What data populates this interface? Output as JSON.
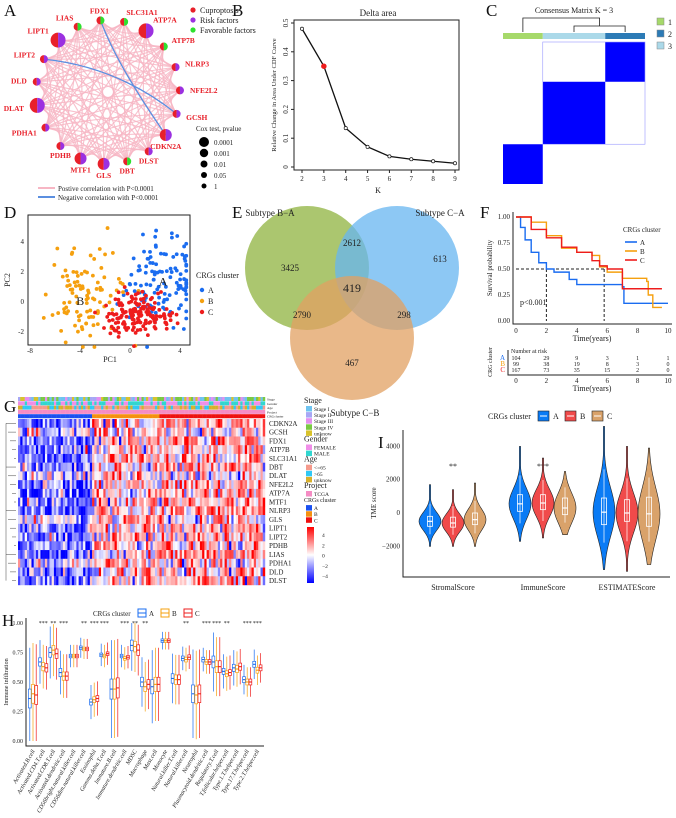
{
  "panel_labels": {
    "a": "A",
    "b": "B",
    "c": "C",
    "d": "D",
    "e": "E",
    "f": "F",
    "g": "G",
    "h": "H",
    "i": "I"
  },
  "panel_a": {
    "legend": [
      {
        "label": "Cuproptosis",
        "color": "#e8202a"
      },
      {
        "label": "Risk factors",
        "color": "#9b30e0"
      },
      {
        "label": "Favorable factors",
        "color": "#2ee02e"
      }
    ],
    "cox_title": "Cox test,  pvalue",
    "cox_levels": [
      "0.0001",
      "0.001",
      "0.01",
      "0.05",
      "1"
    ],
    "edge_legend": [
      {
        "label": "Postive correlation with P<0.0001",
        "color": "#f7b6c4"
      },
      {
        "label": "Negative correlation with P<0.0001",
        "color": "#5b8fe0"
      }
    ],
    "nodes": [
      {
        "name": "FDX1",
        "type": "favorable",
        "pvalue": "0.05"
      },
      {
        "name": "SLC31A1",
        "type": "favorable",
        "pvalue": "0.05"
      },
      {
        "name": "ATP7A",
        "type": "risk",
        "pvalue": "0.0001"
      },
      {
        "name": "ATP7B",
        "type": "favorable",
        "pvalue": "0.05"
      },
      {
        "name": "NLRP3",
        "type": "risk",
        "pvalue": "0.05"
      },
      {
        "name": "NFE2L2",
        "type": "risk",
        "pvalue": "0.05"
      },
      {
        "name": "GCSH",
        "type": "risk",
        "pvalue": "0.05"
      },
      {
        "name": "CDKN2A",
        "type": "risk",
        "pvalue": "0.001"
      },
      {
        "name": "DLST",
        "type": "risk",
        "pvalue": "0.05"
      },
      {
        "name": "DBT",
        "type": "favorable",
        "pvalue": "0.05"
      },
      {
        "name": "GLS",
        "type": "risk",
        "pvalue": "0.001"
      },
      {
        "name": "MTF1",
        "type": "risk",
        "pvalue": "0.001"
      },
      {
        "name": "PDHB",
        "type": "risk",
        "pvalue": "0.05"
      },
      {
        "name": "PDHA1",
        "type": "risk",
        "pvalue": "0.05"
      },
      {
        "name": "DLAT",
        "type": "risk",
        "pvalue": "0.0001"
      },
      {
        "name": "DLD",
        "type": "risk",
        "pvalue": "0.05"
      },
      {
        "name": "LIPT2",
        "type": "risk",
        "pvalue": "0.05"
      },
      {
        "name": "LIPT1",
        "type": "risk",
        "pvalue": "0.0001"
      },
      {
        "name": "LIAS",
        "type": "favorable",
        "pvalue": "0.05"
      }
    ],
    "negative_edges": [
      [
        "LIPT2",
        "GCSH"
      ],
      [
        "FDX1",
        "CDKN2A"
      ]
    ]
  },
  "chart_data": [
    {
      "id": "B",
      "type": "line",
      "title": "Delta area",
      "xlabel": "K",
      "ylabel": "Relative Change in Area Under CDF Curve",
      "x": [
        2,
        3,
        4,
        5,
        6,
        7,
        8,
        9
      ],
      "values": [
        0.48,
        0.35,
        0.135,
        0.07,
        0.037,
        0.027,
        0.02,
        0.013
      ],
      "highlight_k": 3,
      "ylim": [
        0,
        0.5
      ],
      "yticks": [
        "0",
        "0.1",
        "0.2",
        "0.3",
        "0.4",
        "0.5"
      ]
    },
    {
      "id": "C",
      "type": "heatmap",
      "title": "Consensus Matrix K = 3",
      "clusters": [
        {
          "label": "1",
          "color": "#a6d96a",
          "share": 0.28
        },
        {
          "label": "2",
          "color": "#2c7bb6",
          "share": 0.28
        },
        {
          "label": "3",
          "color": "#abd9e9",
          "share": 0.44
        }
      ],
      "block_color": "#0000ff"
    },
    {
      "id": "D",
      "type": "scatter",
      "xlabel": "PC1",
      "ylabel": "PC2",
      "xticks": [
        "-8",
        "-4",
        "0",
        "4"
      ],
      "yticks": [
        "4",
        "2",
        "0",
        "-2"
      ],
      "legend_title": "CRGs cluster",
      "series": [
        {
          "name": "A",
          "color": "#1a6cf0",
          "center": [
            2.5,
            1.5
          ],
          "n": 120
        },
        {
          "name": "B",
          "color": "#f5a00f",
          "center": [
            -3.5,
            0.6
          ],
          "n": 100
        },
        {
          "name": "C",
          "color": "#ee1c1c",
          "center": [
            0.4,
            -0.9
          ],
          "n": 160
        }
      ]
    },
    {
      "id": "E",
      "type": "venn",
      "sets": [
        {
          "name": "Subtype B−A",
          "color": "#8fb33f"
        },
        {
          "name": "Subtype C−A",
          "color": "#67b5f0"
        },
        {
          "name": "Subtype C−B",
          "color": "#e2a062"
        }
      ],
      "regions": {
        "B_only": "3425",
        "AB": "2612",
        "C_only": "613",
        "AC": "2790",
        "ABC": "419",
        "BC": "298",
        "CB_only": "467"
      }
    },
    {
      "id": "F",
      "type": "line",
      "ylabel": "Survival probability",
      "xlabel": "Time(years)",
      "yticks": [
        "1.00",
        "0.75",
        "0.50",
        "0.25",
        "0.00"
      ],
      "xticks": [
        "0",
        "2",
        "4",
        "6",
        "8",
        "10"
      ],
      "legend_title": "CRGs cluster",
      "pvalue": "p<0.001",
      "series": [
        {
          "name": "A",
          "color": "#1a6cf0",
          "steps": [
            [
              0,
              1
            ],
            [
              0.3,
              0.9
            ],
            [
              0.6,
              0.78
            ],
            [
              1,
              0.66
            ],
            [
              1.5,
              0.56
            ],
            [
              2,
              0.5
            ],
            [
              2.5,
              0.47
            ],
            [
              3.5,
              0.4
            ],
            [
              4,
              0.35
            ],
            [
              7,
              0.33
            ],
            [
              7.1,
              0.17
            ],
            [
              10,
              0.17
            ]
          ]
        },
        {
          "name": "B",
          "color": "#f5a00f",
          "steps": [
            [
              0,
              1
            ],
            [
              1,
              0.95
            ],
            [
              2,
              0.82
            ],
            [
              3,
              0.7
            ],
            [
              4,
              0.66
            ],
            [
              5,
              0.63
            ],
            [
              5.5,
              0.52
            ],
            [
              6,
              0.47
            ],
            [
              7,
              0.41
            ],
            [
              8.6,
              0.38
            ],
            [
              8.7,
              0.25
            ],
            [
              9,
              0.13
            ],
            [
              9.6,
              0.13
            ]
          ]
        },
        {
          "name": "C",
          "color": "#ee1c1c",
          "steps": [
            [
              0,
              1
            ],
            [
              1,
              0.88
            ],
            [
              2,
              0.8
            ],
            [
              3,
              0.71
            ],
            [
              4,
              0.66
            ],
            [
              5,
              0.58
            ],
            [
              5.5,
              0.53
            ],
            [
              6,
              0.5
            ],
            [
              6.9,
              0.5
            ],
            [
              7,
              0.31
            ],
            [
              9.6,
              0.31
            ]
          ]
        }
      ],
      "risk_table": {
        "title": "Number at risk",
        "ylabel": "CRG cluster",
        "xlabel": "Time(years)",
        "rows": [
          {
            "name": "A",
            "values": [
              "104",
              "29",
              "9",
              "3",
              "1",
              "1"
            ]
          },
          {
            "name": "B",
            "values": [
              "99",
              "38",
              "19",
              "8",
              "3",
              "0"
            ]
          },
          {
            "name": "C",
            "values": [
              "167",
              "73",
              "35",
              "15",
              "2",
              "0"
            ]
          }
        ]
      }
    },
    {
      "id": "G",
      "type": "heatmap",
      "genes": [
        "CDKN2A",
        "GCSH",
        "FDX1",
        "ATP7B",
        "SLC31A1",
        "DBT",
        "DLAT",
        "NFE2L2",
        "ATP7A",
        "MTF1",
        "NLRP3",
        "GLS",
        "LIPT1",
        "LIPT2",
        "PDHB",
        "LIAS",
        "PDHA1",
        "DLD",
        "DLST"
      ],
      "annotation_rows": [
        "Stage",
        "Gender",
        "Age",
        "Project",
        "CRGcluster"
      ],
      "legend": [
        {
          "title": "Stage",
          "items": [
            {
              "label": "Stage I",
              "color": "#6ec3f0"
            },
            {
              "label": "Stage II",
              "color": "#a7a7f5"
            },
            {
              "label": "Stage III",
              "color": "#e58ef0"
            },
            {
              "label": "Stage IV",
              "color": "#7ac943"
            },
            {
              "label": "unknow",
              "color": "#d8c22b"
            }
          ]
        },
        {
          "title": "Gender",
          "items": [
            {
              "label": "FEMALE",
              "color": "#f08ee8"
            },
            {
              "label": "MALE",
              "color": "#31d6d0"
            }
          ]
        },
        {
          "title": "Age",
          "items": [
            {
              "label": "<=65",
              "color": "#f59a8c"
            },
            {
              "label": ">65",
              "color": "#30c8f5"
            },
            {
              "label": "unknow",
              "color": "#d8b02b"
            }
          ]
        },
        {
          "title": "Project",
          "items": [
            {
              "label": "TCGA",
              "color": "#f58cc4"
            }
          ]
        },
        {
          "title": "CRGs cluster",
          "items": [
            {
              "label": "A",
              "color": "#1a50f0"
            },
            {
              "label": "B",
              "color": "#f5900f"
            },
            {
              "label": "C",
              "color": "#ee1010"
            }
          ]
        }
      ],
      "scale_ticks": [
        "4",
        "2",
        "0",
        "−2",
        "−4"
      ],
      "cluster_share": [
        0.3,
        0.27,
        0.43
      ]
    },
    {
      "id": "I",
      "type": "violin",
      "ylabel": "TME score",
      "legend_title": "CRGs cluster",
      "yticks": [
        "4000",
        "2000",
        "0",
        "−2000"
      ],
      "clusters": [
        {
          "name": "A",
          "color": "#0a7bf5"
        },
        {
          "name": "B",
          "color": "#f04a4a"
        },
        {
          "name": "C",
          "color": "#d9a26a"
        }
      ],
      "categories": [
        {
          "name": "StromalScore",
          "sig": "**",
          "stats": [
            [
              -2000,
              -800,
              -500,
              -200,
              1700
            ],
            [
              -2000,
              -850,
              -600,
              -250,
              1400
            ],
            [
              -2000,
              -700,
              -400,
              0,
              1800
            ]
          ]
        },
        {
          "name": "ImmuneScore",
          "sig": "***",
          "stats": [
            [
              -1700,
              100,
              550,
              1100,
              4000
            ],
            [
              -1500,
              200,
              600,
              1100,
              3300
            ],
            [
              -1300,
              -100,
              300,
              900,
              2500
            ]
          ]
        },
        {
          "name": "ESTIMATEScore",
          "sig": "",
          "stats": [
            [
              -3400,
              -700,
              50,
              900,
              5200
            ],
            [
              -3500,
              -500,
              0,
              800,
              4000
            ],
            [
              -3100,
              -800,
              -50,
              950,
              3900
            ]
          ]
        }
      ]
    },
    {
      "id": "H",
      "type": "box",
      "ylabel": "Immune infiltration",
      "legend_title": "CRGs cluster",
      "yticks": [
        "1.00",
        "0.75",
        "0.50",
        "0.25",
        "0.00"
      ],
      "clusters": [
        {
          "name": "A",
          "color": "#1a6cf0"
        },
        {
          "name": "B",
          "color": "#f5a00f"
        },
        {
          "name": "C",
          "color": "#ee1c1c"
        }
      ],
      "categories": [
        {
          "name": "Activated.B.cell",
          "sig": "",
          "median": [
            0.36,
            0.4,
            0.39
          ],
          "iqr": 0.16,
          "whisker": 0.35
        },
        {
          "name": "Activated.CD4.T.cell",
          "sig": "***",
          "median": [
            0.67,
            0.63,
            0.62
          ],
          "iqr": 0.07,
          "whisker": 0.15
        },
        {
          "name": "Activated.CD8.T.cell",
          "sig": "**",
          "median": [
            0.75,
            0.77,
            0.74
          ],
          "iqr": 0.08,
          "whisker": 0.18
        },
        {
          "name": "Activated.dendritic.cell",
          "sig": "***",
          "median": [
            0.58,
            0.55,
            0.55
          ],
          "iqr": 0.07,
          "whisker": 0.15
        },
        {
          "name": "CD56bright.natural.killer.cell",
          "sig": "",
          "median": [
            0.72,
            0.72,
            0.72
          ],
          "iqr": 0.03,
          "whisker": 0.08
        },
        {
          "name": "CD56dim.natural.killer.cell",
          "sig": "**",
          "median": [
            0.79,
            0.78,
            0.78
          ],
          "iqr": 0.03,
          "whisker": 0.07
        },
        {
          "name": "Eosinophil",
          "sig": "***",
          "median": [
            0.33,
            0.35,
            0.36
          ],
          "iqr": 0.05,
          "whisker": 0.12
        },
        {
          "name": "Gamma.delta.T.cell",
          "sig": "***",
          "median": [
            0.73,
            0.72,
            0.74
          ],
          "iqr": 0.03,
          "whisker": 0.08
        },
        {
          "name": "Immature.B.cell",
          "sig": "",
          "median": [
            0.44,
            0.44,
            0.45
          ],
          "iqr": 0.17,
          "whisker": 0.33
        },
        {
          "name": "Immature.dendritic.cell",
          "sig": "***",
          "median": [
            0.72,
            0.7,
            0.71
          ],
          "iqr": 0.03,
          "whisker": 0.08
        },
        {
          "name": "MDSC",
          "sig": "**",
          "median": [
            0.81,
            0.8,
            0.77
          ],
          "iqr": 0.09,
          "whisker": 0.17
        },
        {
          "name": "Macrophage",
          "sig": "**",
          "median": [
            0.5,
            0.46,
            0.48
          ],
          "iqr": 0.08,
          "whisker": 0.17
        },
        {
          "name": "Mast.cell",
          "sig": "",
          "median": [
            0.46,
            0.48,
            0.48
          ],
          "iqr": 0.12,
          "whisker": 0.25
        },
        {
          "name": "Monocyte",
          "sig": "",
          "median": [
            0.85,
            0.85,
            0.85
          ],
          "iqr": 0.03,
          "whisker": 0.06
        },
        {
          "name": "Natural.killer.T.cell",
          "sig": "",
          "median": [
            0.53,
            0.52,
            0.52
          ],
          "iqr": 0.08,
          "whisker": 0.17
        },
        {
          "name": "Natural.killer.cell",
          "sig": "**",
          "median": [
            0.7,
            0.69,
            0.71
          ],
          "iqr": 0.04,
          "whisker": 0.08
        },
        {
          "name": "Neutrophil",
          "sig": "",
          "median": [
            0.4,
            0.39,
            0.4
          ],
          "iqr": 0.15,
          "whisker": 0.3
        },
        {
          "name": "Plasmacytoid.dendritic.cell",
          "sig": "***",
          "median": [
            0.69,
            0.67,
            0.67
          ],
          "iqr": 0.04,
          "whisker": 0.08
        },
        {
          "name": "Regulatory.T.cell",
          "sig": "***",
          "median": [
            0.67,
            0.63,
            0.63
          ],
          "iqr": 0.1,
          "whisker": 0.2
        },
        {
          "name": "T.follicular.helper.cell",
          "sig": "**",
          "median": [
            0.59,
            0.57,
            0.58
          ],
          "iqr": 0.05,
          "whisker": 0.12
        },
        {
          "name": "Type.1.T.helper.cell",
          "sig": "",
          "median": [
            0.62,
            0.61,
            0.63
          ],
          "iqr": 0.06,
          "whisker": 0.12
        },
        {
          "name": "Type.17.T.helper.cell",
          "sig": "***",
          "median": [
            0.52,
            0.5,
            0.5
          ],
          "iqr": 0.05,
          "whisker": 0.1
        },
        {
          "name": "Type.2.T.helper.cell",
          "sig": "***",
          "median": [
            0.65,
            0.6,
            0.62
          ],
          "iqr": 0.05,
          "whisker": 0.1
        }
      ]
    }
  ]
}
